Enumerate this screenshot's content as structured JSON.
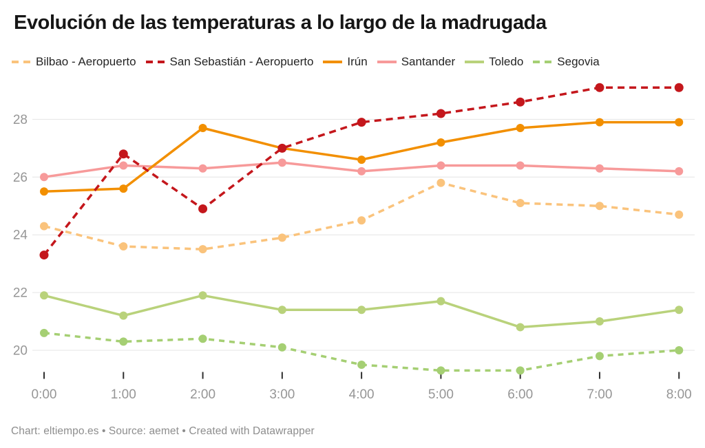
{
  "title": "Evolución de las temperaturas a lo largo de la madrugada",
  "footer": "Chart: eltiempo.es • Source: aemet • Created with Datawrapper",
  "colors": {
    "background": "#ffffff",
    "title_text": "#161616",
    "legend_text": "#242424",
    "grid_line": "#e4e4e4",
    "axis_label": "#969696",
    "tick_mark": "#2f2f2f",
    "footer_text": "#8d8d8d"
  },
  "chart_data": {
    "type": "line",
    "title": "Evolución de las temperaturas a lo largo de la madrugada",
    "xlabel": "",
    "ylabel": "",
    "categories": [
      "0:00",
      "1:00",
      "2:00",
      "3:00",
      "4:00",
      "5:00",
      "6:00",
      "7:00",
      "8:00"
    ],
    "yticks": [
      20,
      22,
      24,
      26,
      28
    ],
    "ylim": [
      19.0,
      29.5
    ],
    "grid": "horizontal",
    "legend_position": "top",
    "series": [
      {
        "name": "Bilbao - Aeropuerto",
        "color": "#fac37c",
        "style": "dashed",
        "values": [
          24.3,
          23.6,
          23.5,
          23.9,
          24.5,
          25.8,
          25.1,
          25.0,
          24.7
        ]
      },
      {
        "name": "San Sebastián - Aeropuerto",
        "color": "#c4171c",
        "style": "dashed",
        "values": [
          23.3,
          26.8,
          24.9,
          27.0,
          27.9,
          28.2,
          28.6,
          29.1,
          29.1
        ]
      },
      {
        "name": "Irún",
        "color": "#f28f00",
        "style": "solid",
        "values": [
          25.5,
          25.6,
          27.7,
          27.0,
          26.6,
          27.2,
          27.7,
          27.9,
          27.9
        ]
      },
      {
        "name": "Santander",
        "color": "#f79a9a",
        "style": "solid",
        "values": [
          26.0,
          26.4,
          26.3,
          26.5,
          26.2,
          26.4,
          26.4,
          26.3,
          26.2
        ]
      },
      {
        "name": "Toledo",
        "color": "#b9d27b",
        "style": "solid",
        "values": [
          21.9,
          21.2,
          21.9,
          21.4,
          21.4,
          21.7,
          20.8,
          21.0,
          21.4
        ]
      },
      {
        "name": "Segovia",
        "color": "#a5cf73",
        "style": "dashed",
        "values": [
          20.6,
          20.3,
          20.4,
          20.1,
          19.5,
          19.3,
          19.3,
          19.8,
          20.0
        ]
      }
    ]
  }
}
